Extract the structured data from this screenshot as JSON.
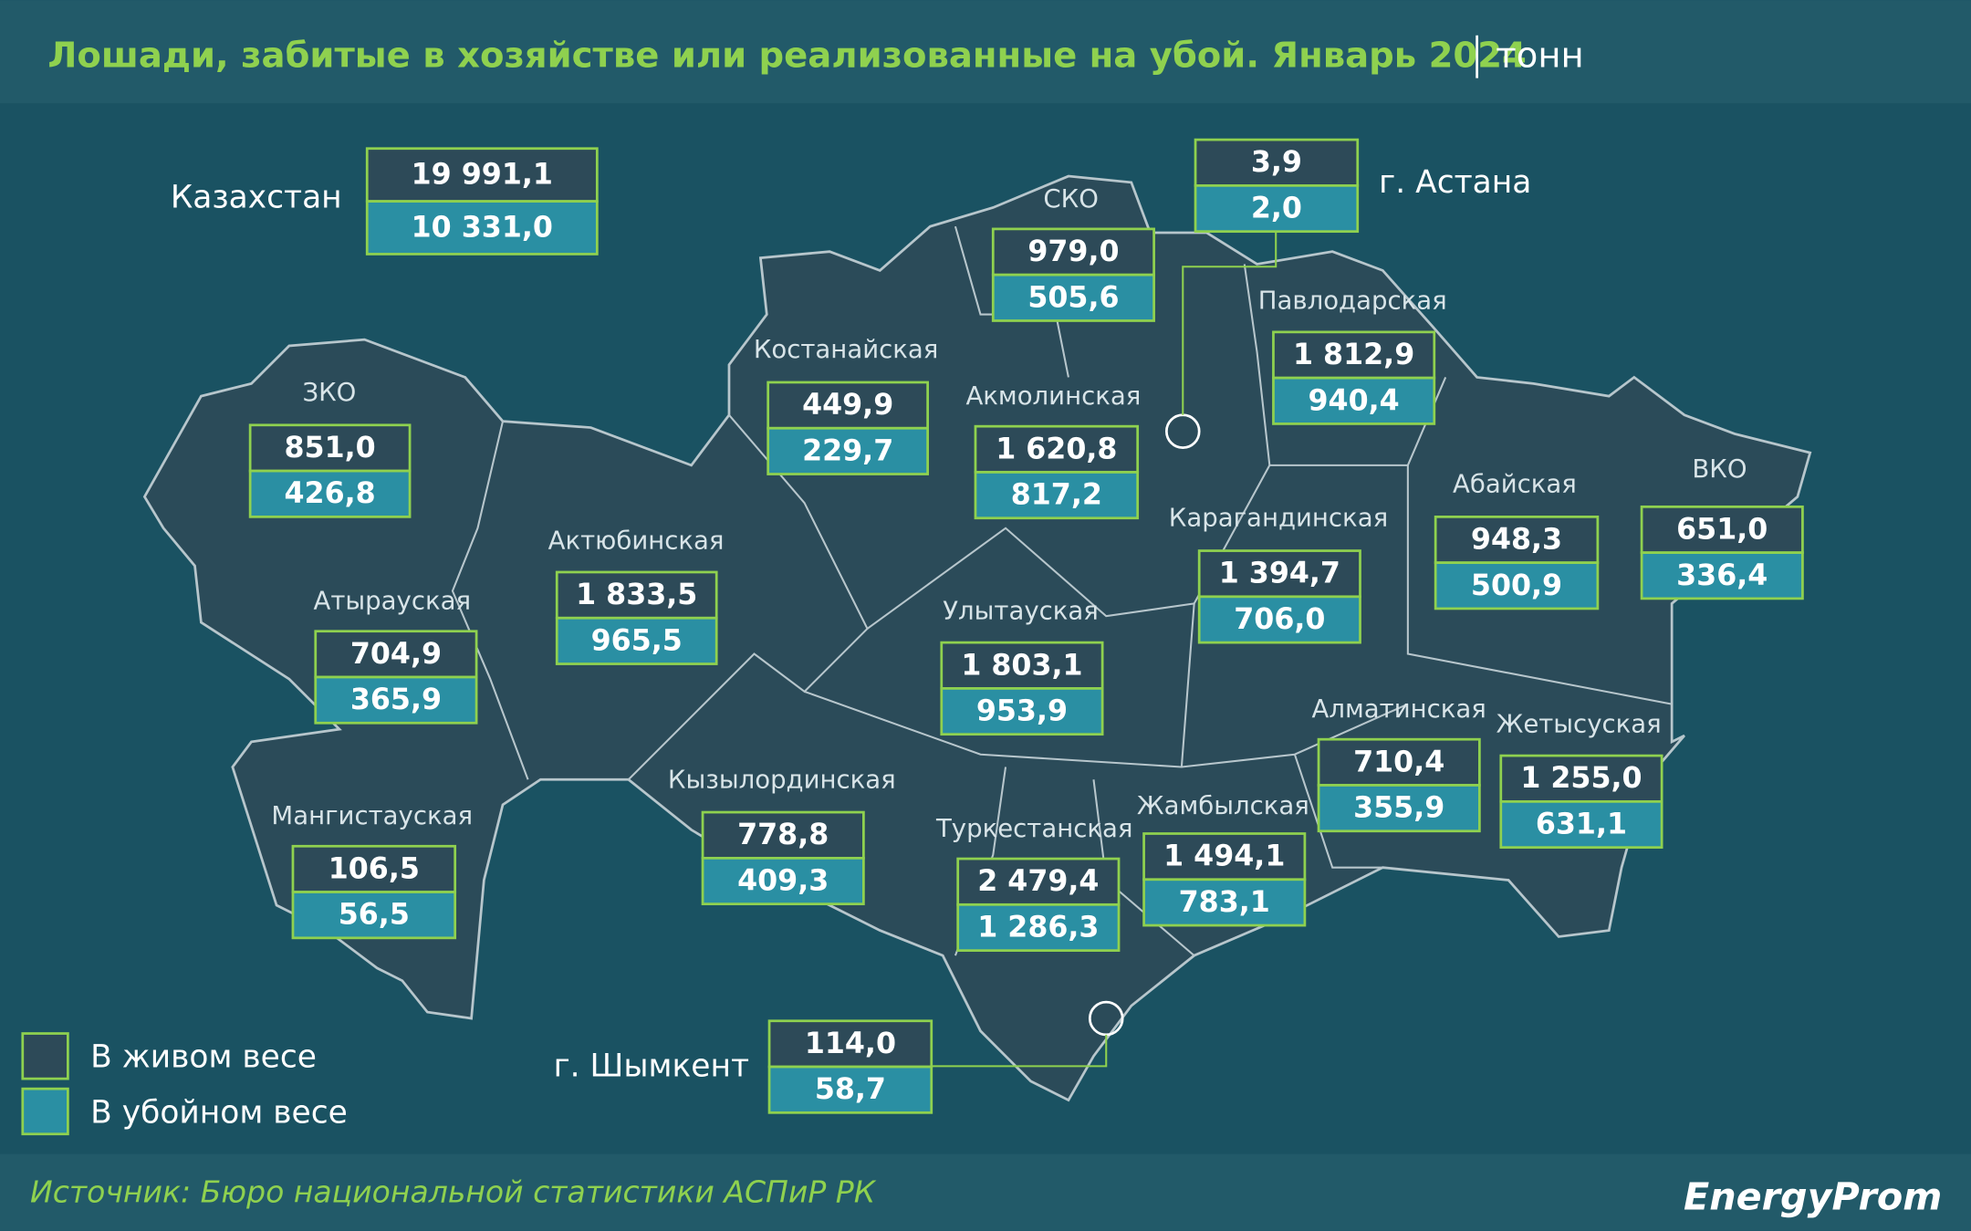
{
  "header": {
    "title": "Лошади, забитые в хозяйстве или реализованные на убой. Январь 2024",
    "unit": "тонн"
  },
  "regions": [
    {
      "name": "Казахстан",
      "live": "19 991,1",
      "slaughter": "10 331,0"
    },
    {
      "name": "СКО",
      "live": "979,0",
      "slaughter": "505,6"
    },
    {
      "name": "г. Астана",
      "live": "3,9",
      "slaughter": "2,0"
    },
    {
      "name": "Павлодарская",
      "live": "1 812,9",
      "slaughter": "940,4"
    },
    {
      "name": "Костанайская",
      "live": "449,9",
      "slaughter": "229,7"
    },
    {
      "name": "Акмолинская",
      "live": "1 620,8",
      "slaughter": "817,2"
    },
    {
      "name": "ЗКО",
      "live": "851,0",
      "slaughter": "426,8"
    },
    {
      "name": "Актюбинская",
      "live": "1 833,5",
      "slaughter": "965,5"
    },
    {
      "name": "Атырауская",
      "live": "704,9",
      "slaughter": "365,9"
    },
    {
      "name": "Абайская",
      "live": "948,3",
      "slaughter": "500,9"
    },
    {
      "name": "ВКО",
      "live": "651,0",
      "slaughter": "336,4"
    },
    {
      "name": "Карагандинская",
      "live": "1 394,7",
      "slaughter": "706,0"
    },
    {
      "name": "Улытауская",
      "live": "1 803,1",
      "slaughter": "953,9"
    },
    {
      "name": "Алматинская",
      "live": "710,4",
      "slaughter": "355,9"
    },
    {
      "name": "Жетысуская",
      "live": "1 255,0",
      "slaughter": "631,1"
    },
    {
      "name": "Кызылординская",
      "live": "778,8",
      "slaughter": "409,3"
    },
    {
      "name": "Мангистауская",
      "live": "106,5",
      "slaughter": "56,5"
    },
    {
      "name": "Туркестанская",
      "live": "2 479,4",
      "slaughter": "1 286,3"
    },
    {
      "name": "Жамбылская",
      "live": "1 494,1",
      "slaughter": "783,1"
    },
    {
      "name": "г. Шымкент",
      "live": "114,0",
      "slaughter": "58,7"
    }
  ],
  "legend": {
    "live": "В живом весе",
    "slaughter": "В убойном весе"
  },
  "footer": {
    "source": "Источник: Бюро национальной статистики АСПиР РК",
    "logo": "EnergyProm"
  }
}
